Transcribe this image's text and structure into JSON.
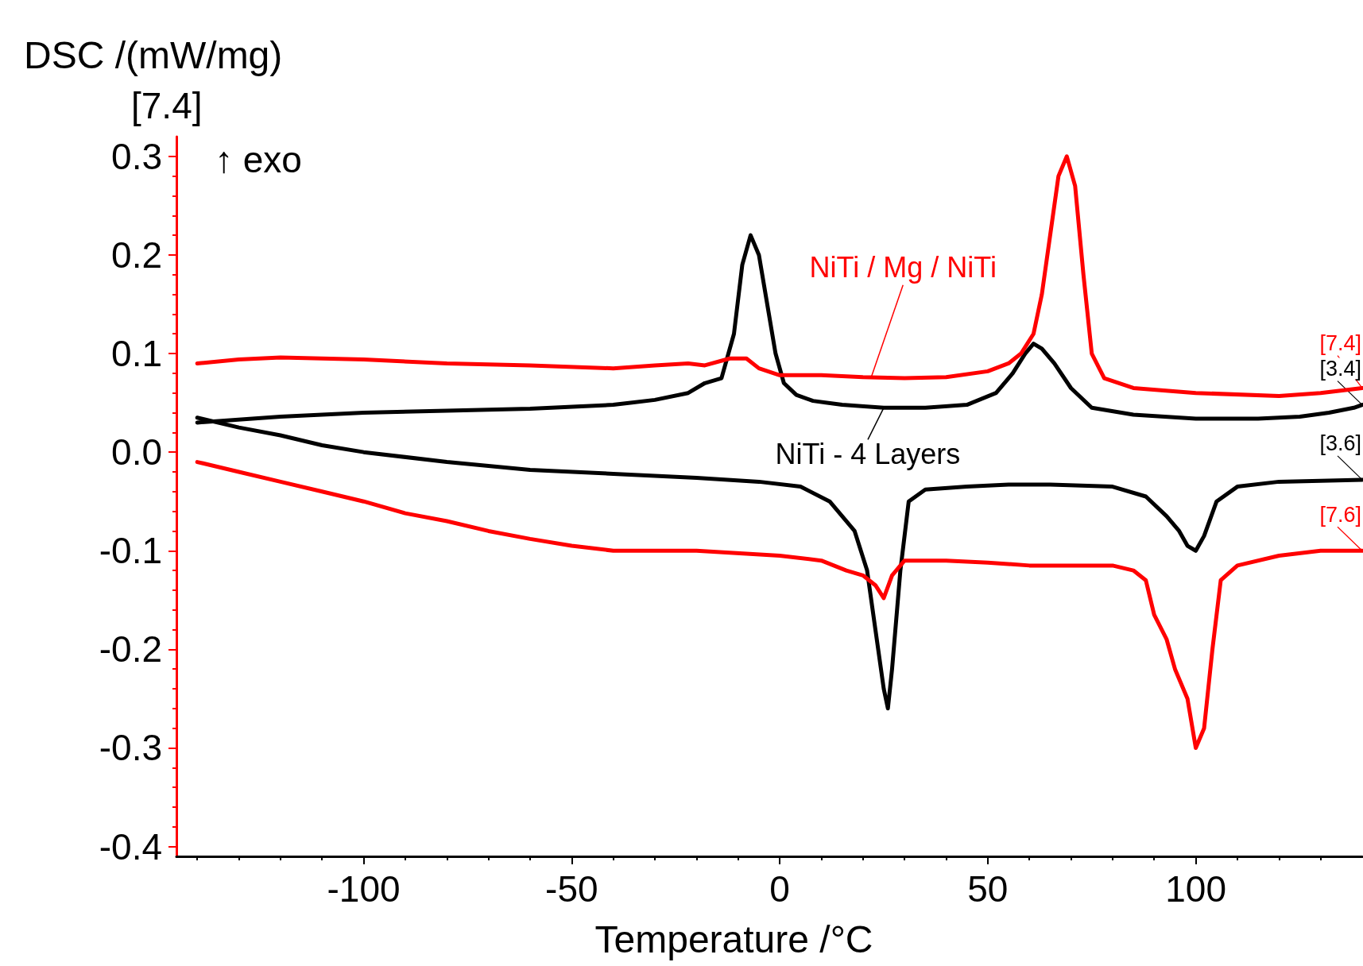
{
  "chart_data": {
    "type": "line",
    "ylabel": "DSC /(mW/mg)",
    "xlabel": "Temperature /°C",
    "annotations": [
      "[7.4]",
      "↑ exo",
      {
        "text": "NiTi / Mg / NiTi",
        "x": 22,
        "y": 0.076
      },
      {
        "text": "NiTi - 4 Layers",
        "x": 25,
        "y": 0.045
      },
      {
        "text": "[7.4]",
        "x": 140,
        "y": 0.065
      },
      {
        "text": "[3.4]",
        "x": 140,
        "y": 0.048
      },
      {
        "text": "[3.6]",
        "x": 140,
        "y": -0.028
      },
      {
        "text": "[7.6]",
        "x": 140,
        "y": -0.1
      }
    ],
    "series": [
      {
        "color": "#000000",
        "x": [
          -140,
          -120,
          -100,
          -80,
          -60,
          -40,
          -30,
          -22,
          -18,
          -14,
          -11,
          -9,
          -7,
          -5,
          -3,
          -1,
          1,
          4,
          8,
          15,
          25,
          35,
          45,
          52,
          56,
          59,
          61,
          63,
          66,
          70,
          75,
          85,
          100,
          115,
          125,
          132,
          138,
          140
        ],
        "values": [
          0.03,
          0.036,
          0.04,
          0.042,
          0.044,
          0.048,
          0.053,
          0.06,
          0.07,
          0.075,
          0.12,
          0.19,
          0.22,
          0.2,
          0.15,
          0.1,
          0.07,
          0.058,
          0.052,
          0.048,
          0.045,
          0.045,
          0.048,
          0.06,
          0.08,
          0.1,
          0.11,
          0.105,
          0.09,
          0.065,
          0.045,
          0.038,
          0.034,
          0.034,
          0.036,
          0.04,
          0.045,
          0.048
        ]
      },
      {
        "color": "#000000",
        "x": [
          -140,
          -130,
          -120,
          -110,
          -100,
          -80,
          -60,
          -40,
          -20,
          -5,
          5,
          12,
          18,
          21,
          23,
          25,
          26,
          27,
          29,
          31,
          35,
          45,
          55,
          65,
          80,
          88,
          93,
          96,
          98,
          100,
          102,
          105,
          110,
          120,
          140
        ],
        "values": [
          0.035,
          0.025,
          0.017,
          0.007,
          0.0,
          -0.01,
          -0.018,
          -0.022,
          -0.026,
          -0.03,
          -0.035,
          -0.05,
          -0.08,
          -0.12,
          -0.18,
          -0.24,
          -0.26,
          -0.22,
          -0.12,
          -0.05,
          -0.038,
          -0.035,
          -0.033,
          -0.033,
          -0.035,
          -0.045,
          -0.065,
          -0.08,
          -0.095,
          -0.1,
          -0.085,
          -0.05,
          -0.035,
          -0.03,
          -0.028
        ]
      },
      {
        "color": "#ff0000",
        "x": [
          -140,
          -130,
          -120,
          -100,
          -80,
          -60,
          -40,
          -30,
          -22,
          -18,
          -12,
          -8,
          -5,
          0,
          10,
          20,
          30,
          40,
          50,
          55,
          58,
          61,
          63,
          65,
          67,
          69,
          71,
          73,
          75,
          78,
          85,
          100,
          120,
          130,
          140
        ],
        "values": [
          0.09,
          0.094,
          0.096,
          0.094,
          0.09,
          0.088,
          0.085,
          0.088,
          0.09,
          0.088,
          0.095,
          0.095,
          0.085,
          0.078,
          0.078,
          0.076,
          0.075,
          0.076,
          0.082,
          0.09,
          0.1,
          0.12,
          0.16,
          0.22,
          0.28,
          0.3,
          0.27,
          0.18,
          0.1,
          0.075,
          0.065,
          0.06,
          0.057,
          0.06,
          0.065
        ]
      },
      {
        "color": "#ff0000",
        "x": [
          -140,
          -130,
          -120,
          -110,
          -100,
          -90,
          -80,
          -70,
          -60,
          -50,
          -40,
          -20,
          0,
          10,
          16,
          20,
          23,
          25,
          27,
          30,
          40,
          50,
          60,
          70,
          80,
          85,
          88,
          90,
          93,
          95,
          98,
          100,
          102,
          104,
          106,
          110,
          120,
          130,
          140
        ],
        "values": [
          -0.01,
          -0.02,
          -0.03,
          -0.04,
          -0.05,
          -0.062,
          -0.07,
          -0.08,
          -0.088,
          -0.095,
          -0.1,
          -0.1,
          -0.105,
          -0.11,
          -0.12,
          -0.125,
          -0.135,
          -0.148,
          -0.125,
          -0.11,
          -0.11,
          -0.112,
          -0.115,
          -0.115,
          -0.115,
          -0.12,
          -0.13,
          -0.165,
          -0.19,
          -0.22,
          -0.25,
          -0.3,
          -0.28,
          -0.2,
          -0.13,
          -0.115,
          -0.105,
          -0.1,
          -0.1
        ]
      }
    ],
    "xlim": [
      -145,
      140
    ],
    "ylim": [
      -0.41,
      0.32
    ],
    "xticks": [
      -100,
      -50,
      0,
      50,
      100
    ],
    "yticks": [
      0.3,
      0.2,
      0.1,
      {
        "value": 0,
        "label": "0.0"
      },
      -0.1,
      -0.2,
      -0.3,
      -0.4
    ],
    "grid": false,
    "legend": false,
    "marker": "none",
    "line_style": "solid"
  }
}
